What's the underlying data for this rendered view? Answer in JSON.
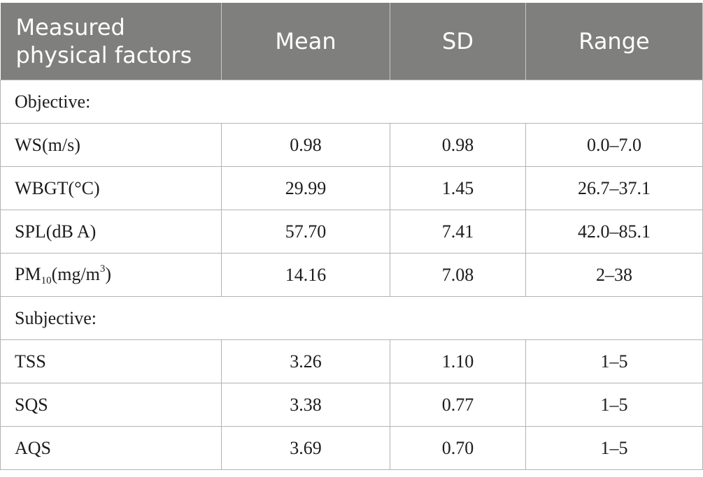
{
  "header": {
    "factor_line1": "Measured",
    "factor_line2": "physical factors",
    "mean": "Mean",
    "sd": "SD",
    "range": "Range"
  },
  "sections": {
    "objective": "Objective:",
    "subjective": "Subjective:"
  },
  "rows": {
    "ws": {
      "label": "WS(m/s)",
      "mean": "0.98",
      "sd": "0.98",
      "range": "0.0–7.0"
    },
    "wbgt": {
      "label": "WBGT(°C)",
      "mean": "29.99",
      "sd": "1.45",
      "range": "26.7–37.1"
    },
    "spl": {
      "label": "SPL(dB A)",
      "mean": "57.70",
      "sd": "7.41",
      "range": "42.0–85.1"
    },
    "pm10": {
      "label_pre": "PM",
      "label_sub": "10",
      "label_mid": "(mg/m",
      "label_sup": "3",
      "label_post": ")",
      "mean": "14.16",
      "sd": "7.08",
      "range": "2–38"
    },
    "tss": {
      "label": "TSS",
      "mean": "3.26",
      "sd": "1.10",
      "range": "1–5"
    },
    "sqs": {
      "label": "SQS",
      "mean": "3.38",
      "sd": "0.77",
      "range": "1–5"
    },
    "aqs": {
      "label": "AQS",
      "mean": "3.69",
      "sd": "0.70",
      "range": "1–5"
    }
  }
}
